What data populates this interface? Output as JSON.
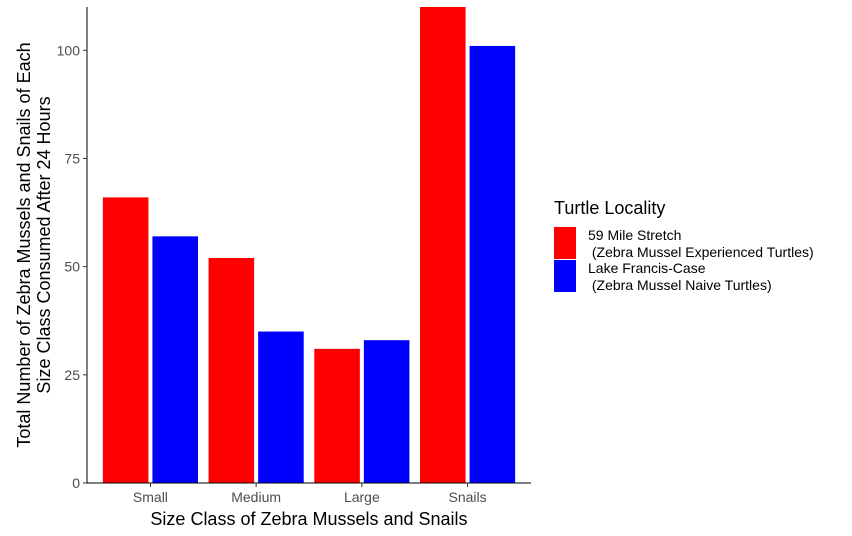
{
  "chart_data": {
    "type": "bar",
    "categories": [
      "Small",
      "Medium",
      "Large",
      "Snails"
    ],
    "series": [
      {
        "name": "59 Mile Stretch\n (Zebra Mussel Experienced Turtles)",
        "color": "#FF0000",
        "values": [
          66,
          52,
          31,
          110
        ]
      },
      {
        "name": "Lake Francis-Case\n (Zebra Mussel Naive Turtles)",
        "color": "#0000FF",
        "values": [
          57,
          35,
          33,
          101
        ]
      }
    ],
    "xlabel": "Size Class of Zebra Mussels and Snails",
    "ylabel": [
      "Total Number of Zebra Mussels and Snails of Each",
      "Size Class Consumed After 24 Hours"
    ],
    "ylim": [
      0,
      110
    ],
    "yticks": [
      0,
      25,
      50,
      75,
      100
    ],
    "legend_title": "Turtle Locality",
    "legend_position": "right",
    "grid": false
  }
}
